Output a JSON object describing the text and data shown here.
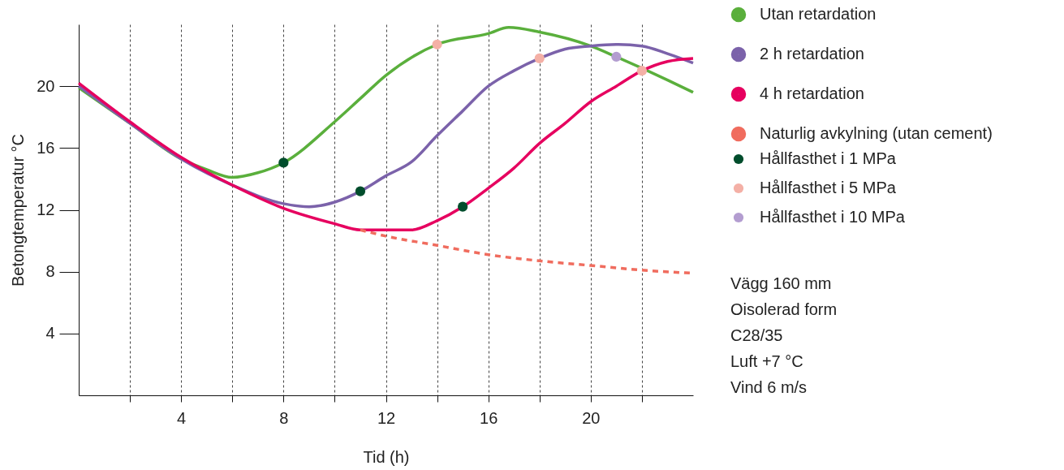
{
  "chart_data": {
    "type": "line",
    "xlabel": "Tid (h)",
    "ylabel": "Betongtemperatur °C",
    "xlim": [
      0,
      24
    ],
    "ylim": [
      0,
      24
    ],
    "xticks": [
      {
        "value": 2,
        "label": null
      },
      4,
      {
        "value": 6,
        "label": null
      },
      8,
      {
        "value": 10,
        "label": null
      },
      12,
      {
        "value": 14,
        "label": null
      },
      16,
      {
        "value": 18,
        "label": null
      },
      20,
      {
        "value": 22,
        "label": null
      }
    ],
    "yticks": [
      4,
      8,
      12,
      16,
      20
    ],
    "grid": "x",
    "legend": "right",
    "series": [
      {
        "name": "Utan retardation",
        "color": "#5aaf3c",
        "x": [
          0,
          2,
          4,
          5,
          6,
          7,
          8,
          10,
          11,
          12,
          14,
          16,
          16.8,
          18,
          20,
          21,
          23,
          24
        ],
        "values": [
          19.9,
          17.6,
          15.3,
          14.6,
          14.1,
          14.4,
          15.05,
          17.7,
          19.2,
          20.7,
          22.7,
          23.4,
          23.8,
          23.5,
          22.6,
          21.9,
          20.4,
          19.6
        ]
      },
      {
        "name": "2 h retardation",
        "color": "#7b62aa",
        "x": [
          0,
          2,
          4,
          6,
          8,
          9,
          10,
          11,
          12,
          13,
          14,
          15,
          16,
          17,
          18,
          19,
          20,
          21,
          22,
          23,
          24
        ],
        "values": [
          20.0,
          17.6,
          15.3,
          13.6,
          12.4,
          12.2,
          12.5,
          13.2,
          14.2,
          15.1,
          16.8,
          18.4,
          20.0,
          21.0,
          21.8,
          22.4,
          22.6,
          22.7,
          22.6,
          22.1,
          21.5
        ]
      },
      {
        "name": "4 h retardation",
        "color": "#e6005f",
        "x": [
          0,
          2,
          4,
          6,
          8,
          10,
          11,
          12,
          13,
          14,
          15,
          16,
          17,
          18,
          19,
          20,
          21,
          22,
          23,
          24
        ],
        "values": [
          20.2,
          17.7,
          15.4,
          13.6,
          12.1,
          11.1,
          10.7,
          10.7,
          10.7,
          11.3,
          12.2,
          13.4,
          14.7,
          16.3,
          17.6,
          19.0,
          20.0,
          21.0,
          21.6,
          21.8
        ]
      },
      {
        "name": "Naturlig avkylning (utan cement)",
        "color": "#f06c5e",
        "line_style": "dashed",
        "x": [
          11,
          12,
          14,
          16,
          18,
          20,
          22,
          24
        ],
        "values": [
          10.7,
          10.3,
          9.7,
          9.1,
          8.7,
          8.4,
          8.1,
          7.9
        ]
      },
      {
        "name": "Hållfasthet i 1 MPa",
        "type": "scatter",
        "marker": "circle",
        "color": "#004d2c",
        "x": [
          8,
          11,
          15
        ],
        "values": [
          15.05,
          13.2,
          12.2
        ]
      },
      {
        "name": "Hållfasthet i 5 MPa",
        "type": "scatter",
        "marker": "circle",
        "color": "#f4b0a6",
        "x": [
          14,
          18,
          22
        ],
        "values": [
          22.7,
          21.8,
          21.0
        ]
      },
      {
        "name": "Hållfasthet i 10 MPa",
        "type": "scatter",
        "marker": "circle",
        "color": "#b39dd0",
        "x": [
          21
        ],
        "values": [
          21.9
        ]
      }
    ],
    "annotations": [
      "Vägg 160 mm",
      "Oisolerad form",
      "C28/35",
      "Luft +7 °C",
      "Vind 6 m/s"
    ]
  }
}
